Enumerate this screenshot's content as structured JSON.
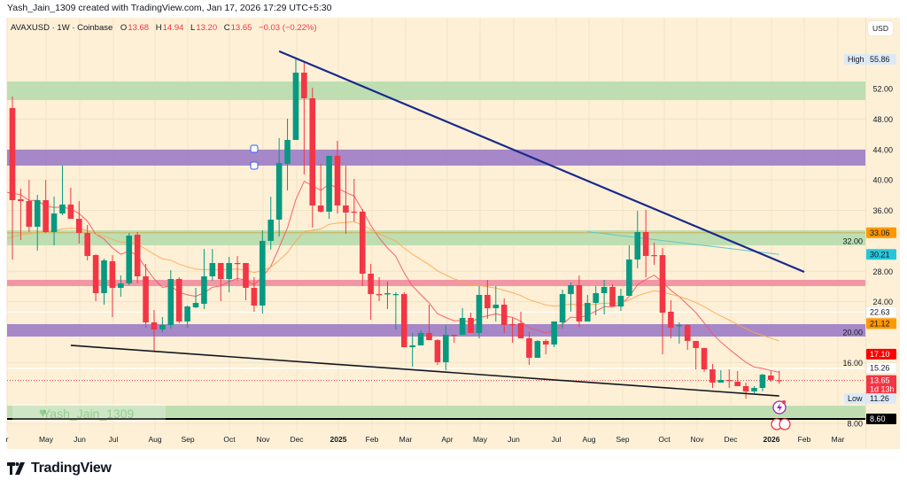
{
  "credit": "Yash_Jain_1309 created with TradingView.com, Jan 17, 2026 17:29 UTC+5:30",
  "legend": {
    "symbol": "AVAXUSD · 1W · Coinbase",
    "open_label": "O",
    "open": "13.68",
    "high_label": "H",
    "high": "14.94",
    "low_label": "L",
    "low": "13.20",
    "close_label": "C",
    "close": "13.65",
    "change": "−0.03 (−0.22%)"
  },
  "currency": "USD",
  "watermark": "Yash_Jain_1309",
  "footer_brand": "TradingView",
  "colors": {
    "up": "#089981",
    "down": "#f23645",
    "background": "#fdf0d6",
    "trendline_upper": "#1a2a8c",
    "trendline_lower": "#131722",
    "ma_fast": "#f7525f",
    "ma_slow": "#ffa74f",
    "ma_long": "#5fc8c8"
  },
  "chart_data": {
    "type": "candlestick",
    "interval": "1W",
    "columns": [
      "date",
      "open",
      "high",
      "low",
      "close"
    ],
    "candles": [
      [
        "2024-04-01",
        54.1,
        54.1,
        49.44,
        49.44
      ],
      [
        "2024-04-08",
        49.44,
        50.95,
        29.54,
        37.34
      ],
      [
        "2024-04-15",
        37.45,
        38.85,
        32.1,
        37.22
      ],
      [
        "2024-04-22",
        37.22,
        40.01,
        33.15,
        33.85
      ],
      [
        "2024-04-29",
        33.85,
        38.04,
        30.71,
        37.34
      ],
      [
        "2024-05-06",
        37.34,
        40.01,
        33.03,
        33.15
      ],
      [
        "2024-05-13",
        33.15,
        37.8,
        31.4,
        35.59
      ],
      [
        "2024-05-20",
        35.59,
        41.88,
        35.36,
        36.76
      ],
      [
        "2024-05-27",
        36.76,
        38.97,
        34.89,
        34.89
      ],
      [
        "2024-06-03",
        34.89,
        37.22,
        31.64,
        33.03
      ],
      [
        "2024-06-10",
        33.03,
        34.08,
        29.43,
        30.01
      ],
      [
        "2024-06-17",
        30.12,
        30.24,
        24.07,
        25.12
      ],
      [
        "2024-06-24",
        25.12,
        29.66,
        23.61,
        29.43
      ],
      [
        "2024-07-01",
        29.31,
        30.12,
        21.98,
        25.82
      ],
      [
        "2024-07-08",
        25.82,
        27.45,
        24.65,
        26.4
      ],
      [
        "2024-07-15",
        26.4,
        33.03,
        26.17,
        32.68
      ],
      [
        "2024-07-22",
        32.8,
        33.15,
        26.4,
        27.33
      ],
      [
        "2024-07-29",
        27.33,
        28.96,
        20.58,
        21.28
      ],
      [
        "2024-08-05",
        21.28,
        22.91,
        17.44,
        20.35
      ],
      [
        "2024-08-12",
        20.35,
        21.98,
        20.0,
        20.93
      ],
      [
        "2024-08-19",
        20.93,
        28.15,
        20.47,
        26.98
      ],
      [
        "2024-08-26",
        26.98,
        27.22,
        21.16,
        21.4
      ],
      [
        "2024-09-02",
        21.4,
        23.49,
        20.58,
        23.37
      ],
      [
        "2024-09-09",
        23.26,
        25.82,
        23.14,
        23.84
      ],
      [
        "2024-09-16",
        23.72,
        30.94,
        23.03,
        27.33
      ],
      [
        "2024-09-23",
        27.33,
        30.94,
        26.75,
        29.08
      ],
      [
        "2024-09-30",
        29.08,
        29.08,
        24.07,
        26.98
      ],
      [
        "2024-10-07",
        26.98,
        29.89,
        25.24,
        29.08
      ],
      [
        "2024-10-14",
        29.08,
        30.01,
        26.75,
        28.96
      ],
      [
        "2024-10-21",
        29.08,
        29.08,
        24.19,
        25.82
      ],
      [
        "2024-10-28",
        25.82,
        27.22,
        22.68,
        23.49
      ],
      [
        "2024-11-04",
        23.49,
        33.38,
        22.44,
        31.99
      ],
      [
        "2024-11-11",
        31.99,
        37.8,
        30.82,
        34.78
      ],
      [
        "2024-11-18",
        34.78,
        45.49,
        32.57,
        42.23
      ],
      [
        "2024-11-25",
        42.11,
        48.04,
        38.62,
        45.25
      ],
      [
        "2024-12-02",
        45.25,
        55.86,
        45.25,
        54.09
      ],
      [
        "2024-12-09",
        54.09,
        55.37,
        40.71,
        50.72
      ],
      [
        "2024-12-16",
        50.72,
        52.12,
        33.73,
        36.64
      ],
      [
        "2024-12-23",
        36.64,
        42.11,
        35.71,
        35.83
      ],
      [
        "2024-12-30",
        35.83,
        43.16,
        34.89,
        43.16
      ],
      [
        "2025-01-06",
        43.16,
        45.14,
        35.59,
        36.64
      ],
      [
        "2025-01-13",
        36.64,
        41.88,
        32.92,
        35.71
      ],
      [
        "2025-01-20",
        35.83,
        40.13,
        34.55,
        35.77
      ],
      [
        "2025-01-27",
        35.83,
        36.18,
        26.05,
        27.68
      ],
      [
        "2025-02-03",
        27.68,
        28.96,
        21.63,
        25.0
      ],
      [
        "2025-02-10",
        25.0,
        27.22,
        24.07,
        24.95
      ],
      [
        "2025-02-17",
        24.95,
        26.64,
        23.03,
        25.12
      ],
      [
        "2025-02-24",
        24.89,
        25.24,
        20.35,
        25.0
      ],
      [
        "2025-03-03",
        25.0,
        25.24,
        18.02,
        18.02
      ],
      [
        "2025-03-10",
        18.02,
        19.89,
        15.46,
        18.26
      ],
      [
        "2025-03-17",
        18.26,
        20.23,
        18.26,
        19.89
      ],
      [
        "2025-03-24",
        19.89,
        23.61,
        18.95,
        18.95
      ],
      [
        "2025-03-31",
        18.95,
        19.07,
        15.69,
        16.04
      ],
      [
        "2025-04-07",
        16.04,
        20.93,
        14.99,
        19.65
      ],
      [
        "2025-04-14",
        19.65,
        19.65,
        18.6,
        19.54
      ],
      [
        "2025-04-21",
        19.65,
        23.14,
        19.65,
        21.86
      ],
      [
        "2025-04-28",
        21.86,
        22.56,
        19.89,
        19.89
      ],
      [
        "2025-05-05",
        19.89,
        26.05,
        19.19,
        24.89
      ],
      [
        "2025-05-12",
        24.89,
        26.87,
        21.75,
        23.14
      ],
      [
        "2025-05-19",
        23.14,
        26.05,
        21.4,
        23.61
      ],
      [
        "2025-05-26",
        23.61,
        24.42,
        19.89,
        20.93
      ],
      [
        "2025-06-02",
        21.05,
        21.86,
        18.6,
        20.99
      ],
      [
        "2025-06-09",
        21.16,
        22.68,
        19.19,
        19.19
      ],
      [
        "2025-06-16",
        19.19,
        20.0,
        15.69,
        16.63
      ],
      [
        "2025-06-23",
        16.63,
        18.95,
        16.63,
        18.84
      ],
      [
        "2025-06-30",
        18.84,
        19.07,
        17.09,
        18.37
      ],
      [
        "2025-07-07",
        18.37,
        21.4,
        18.02,
        21.4
      ],
      [
        "2025-07-14",
        21.28,
        25.59,
        20.47,
        25.0
      ],
      [
        "2025-07-21",
        25.0,
        26.52,
        22.68,
        26.17
      ],
      [
        "2025-07-28",
        26.17,
        27.45,
        20.7,
        21.4
      ],
      [
        "2025-08-04",
        21.4,
        24.89,
        21.4,
        23.84
      ],
      [
        "2025-08-11",
        23.84,
        26.05,
        22.21,
        25.12
      ],
      [
        "2025-08-18",
        25.12,
        26.87,
        22.33,
        25.94
      ],
      [
        "2025-08-25",
        25.94,
        26.29,
        23.37,
        23.37
      ],
      [
        "2025-09-01",
        23.37,
        25.7,
        22.79,
        24.77
      ],
      [
        "2025-09-08",
        24.77,
        31.4,
        24.77,
        29.54
      ],
      [
        "2025-09-15",
        29.54,
        35.94,
        28.38,
        33.15
      ],
      [
        "2025-09-22",
        33.15,
        36.06,
        27.22,
        30.01
      ],
      [
        "2025-09-29",
        30.12,
        31.75,
        28.84,
        30.07
      ],
      [
        "2025-10-06",
        30.12,
        31.05,
        17.09,
        22.56
      ],
      [
        "2025-10-13",
        22.68,
        24.19,
        19.19,
        20.58
      ],
      [
        "2025-10-20",
        20.81,
        21.28,
        18.49,
        20.93
      ],
      [
        "2025-10-27",
        20.93,
        21.05,
        17.67,
        18.84
      ],
      [
        "2025-11-03",
        18.84,
        18.84,
        15.11,
        17.91
      ],
      [
        "2025-11-10",
        17.91,
        17.91,
        14.76,
        15.11
      ],
      [
        "2025-11-17",
        15.11,
        15.81,
        12.67,
        13.37
      ],
      [
        "2025-11-24",
        13.37,
        15.0,
        13.37,
        13.72
      ],
      [
        "2025-12-01",
        13.72,
        15.11,
        12.67,
        13.6
      ],
      [
        "2025-12-08",
        13.49,
        14.88,
        12.9,
        12.9
      ],
      [
        "2025-12-15",
        12.9,
        13.37,
        11.26,
        12.21
      ],
      [
        "2025-12-22",
        12.21,
        12.9,
        11.97,
        12.67
      ],
      [
        "2025-12-29",
        12.67,
        14.53,
        12.21,
        14.41
      ],
      [
        "2026-01-05",
        14.3,
        14.88,
        13.49,
        13.72
      ],
      [
        "2026-01-12",
        13.68,
        14.94,
        13.2,
        13.65
      ]
    ],
    "zones": [
      {
        "color": "#b7dcae",
        "top": 52.93,
        "bottom": 50.49
      },
      {
        "color": "#9c7bc6",
        "top": 43.97,
        "bottom": 41.88
      },
      {
        "color": "#b7dcae",
        "top": 33.38,
        "bottom": 31.4
      },
      {
        "color": "#f08ca0",
        "top": 26.87,
        "bottom": 26.05
      },
      {
        "color": "#9c7bc6",
        "top": 21.05,
        "bottom": 19.42
      },
      {
        "color": "#b7dcae",
        "top": 10.33,
        "bottom": 8.74
      }
    ],
    "horizontal_lines": [
      {
        "value": 33.06,
        "color": "#c9b86a"
      },
      {
        "value": 22.63,
        "color": "#ffffff"
      },
      {
        "value": 15.26,
        "color": "#ffffff"
      },
      {
        "value": 8.6,
        "color": "#000000"
      }
    ],
    "trendlines": [
      {
        "name": "upper",
        "from": [
          "2024-11-18",
          56.9
        ],
        "to": [
          "2026-02-02",
          27.91
        ]
      },
      {
        "name": "lower",
        "from": [
          "2024-05-27",
          18.26
        ],
        "to": [
          "2026-01-12",
          11.62
        ]
      }
    ],
    "long_ma_segment": {
      "from": [
        "2025-08-04",
        33.2
      ],
      "to": [
        "2026-01-12",
        30.21
      ]
    },
    "price_ticks": [
      "52.00",
      "48.00",
      "44.00",
      "40.00",
      "36.00",
      "32.00",
      "28.00",
      "24.00",
      "20.00",
      "16.00",
      "8.00"
    ],
    "time_labels": [
      "r",
      "May",
      "Jun",
      "Jul",
      "Aug",
      "Sep",
      "Oct",
      "Nov",
      "Dec",
      "2025",
      "Feb",
      "Mar",
      "Apr",
      "May",
      "Jun",
      "Jul",
      "Aug",
      "Sep",
      "Oct",
      "Nov",
      "Dec",
      "2026",
      "Feb",
      "Mar"
    ],
    "price_tags": [
      {
        "label": "High",
        "text": "55.86",
        "bg": "#dde9f6",
        "fg": "#131722"
      },
      {
        "text": "33.06",
        "bg": "#ff9800",
        "fg": "#131722"
      },
      {
        "text": "30.21",
        "bg": "#26c6da",
        "fg": "#131722"
      },
      {
        "text": "22.63",
        "bg": "#ffffff",
        "fg": "#131722"
      },
      {
        "text": "21.12",
        "bg": "#ff9800",
        "fg": "#131722"
      },
      {
        "text": "17.10",
        "bg": "#ff0000",
        "fg": "#ffffff"
      },
      {
        "text": "15.26",
        "bg": "#ffffff",
        "fg": "#131722"
      },
      {
        "text": "13.65",
        "sub": "1d 13h",
        "bg": "#f23645",
        "fg": "#ffffff"
      },
      {
        "label": "Low",
        "text": "11.26",
        "bg": "#dde9f6",
        "fg": "#131722"
      },
      {
        "text": "8.60",
        "bg": "#000000",
        "fg": "#ffffff"
      }
    ]
  }
}
